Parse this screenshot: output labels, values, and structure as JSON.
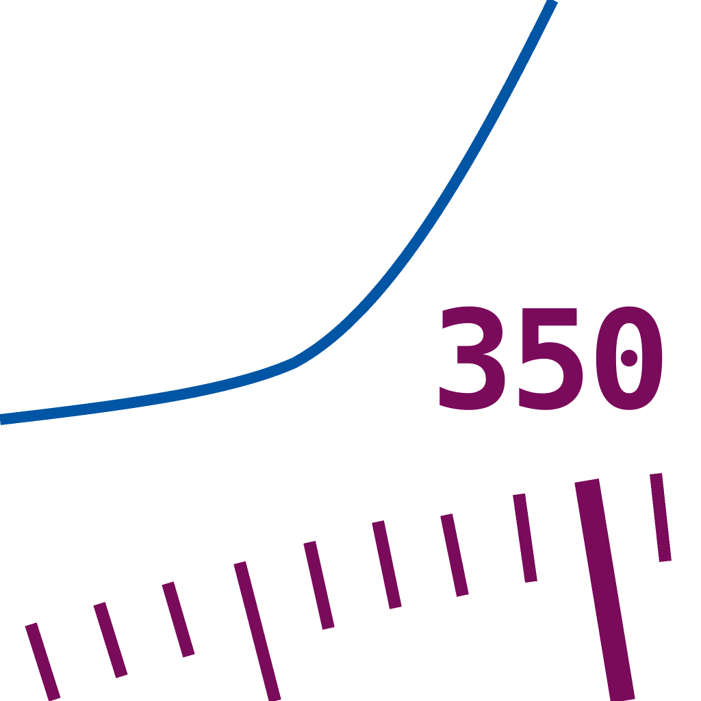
{
  "gauge": {
    "scale_label": "350",
    "colors": {
      "curve": "#0055a5",
      "marks": "#7a0a5a",
      "background": "#ffffff"
    }
  }
}
